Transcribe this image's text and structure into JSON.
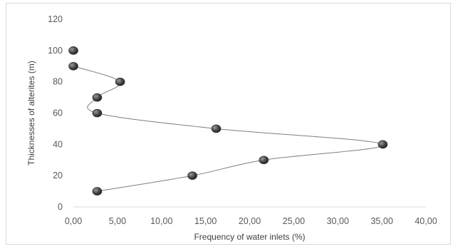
{
  "chart_data": {
    "type": "scatter",
    "title": "",
    "xlabel": "Frequency of water inlets (%)",
    "ylabel": "Thicknesses of alterites (m)",
    "xlim": [
      0,
      40
    ],
    "ylim": [
      0,
      120
    ],
    "xticks": [
      "0,00",
      "5,00",
      "10,00",
      "15,00",
      "20,00",
      "25,00",
      "30,00",
      "35,00",
      "40,00"
    ],
    "yticks": [
      "0",
      "20",
      "40",
      "60",
      "80",
      "100",
      "120"
    ],
    "grid": false,
    "legend": "none",
    "smooth_line": true,
    "marker_color": "#555555",
    "line_color": "#7f7f7f",
    "series": [
      {
        "x": [
          0.0,
          0.0,
          5.3,
          2.7,
          2.7,
          16.2,
          35.1,
          21.6,
          13.5,
          2.7
        ],
        "y": [
          100,
          90,
          80,
          70,
          60,
          50,
          40,
          30,
          20,
          10
        ]
      }
    ]
  }
}
